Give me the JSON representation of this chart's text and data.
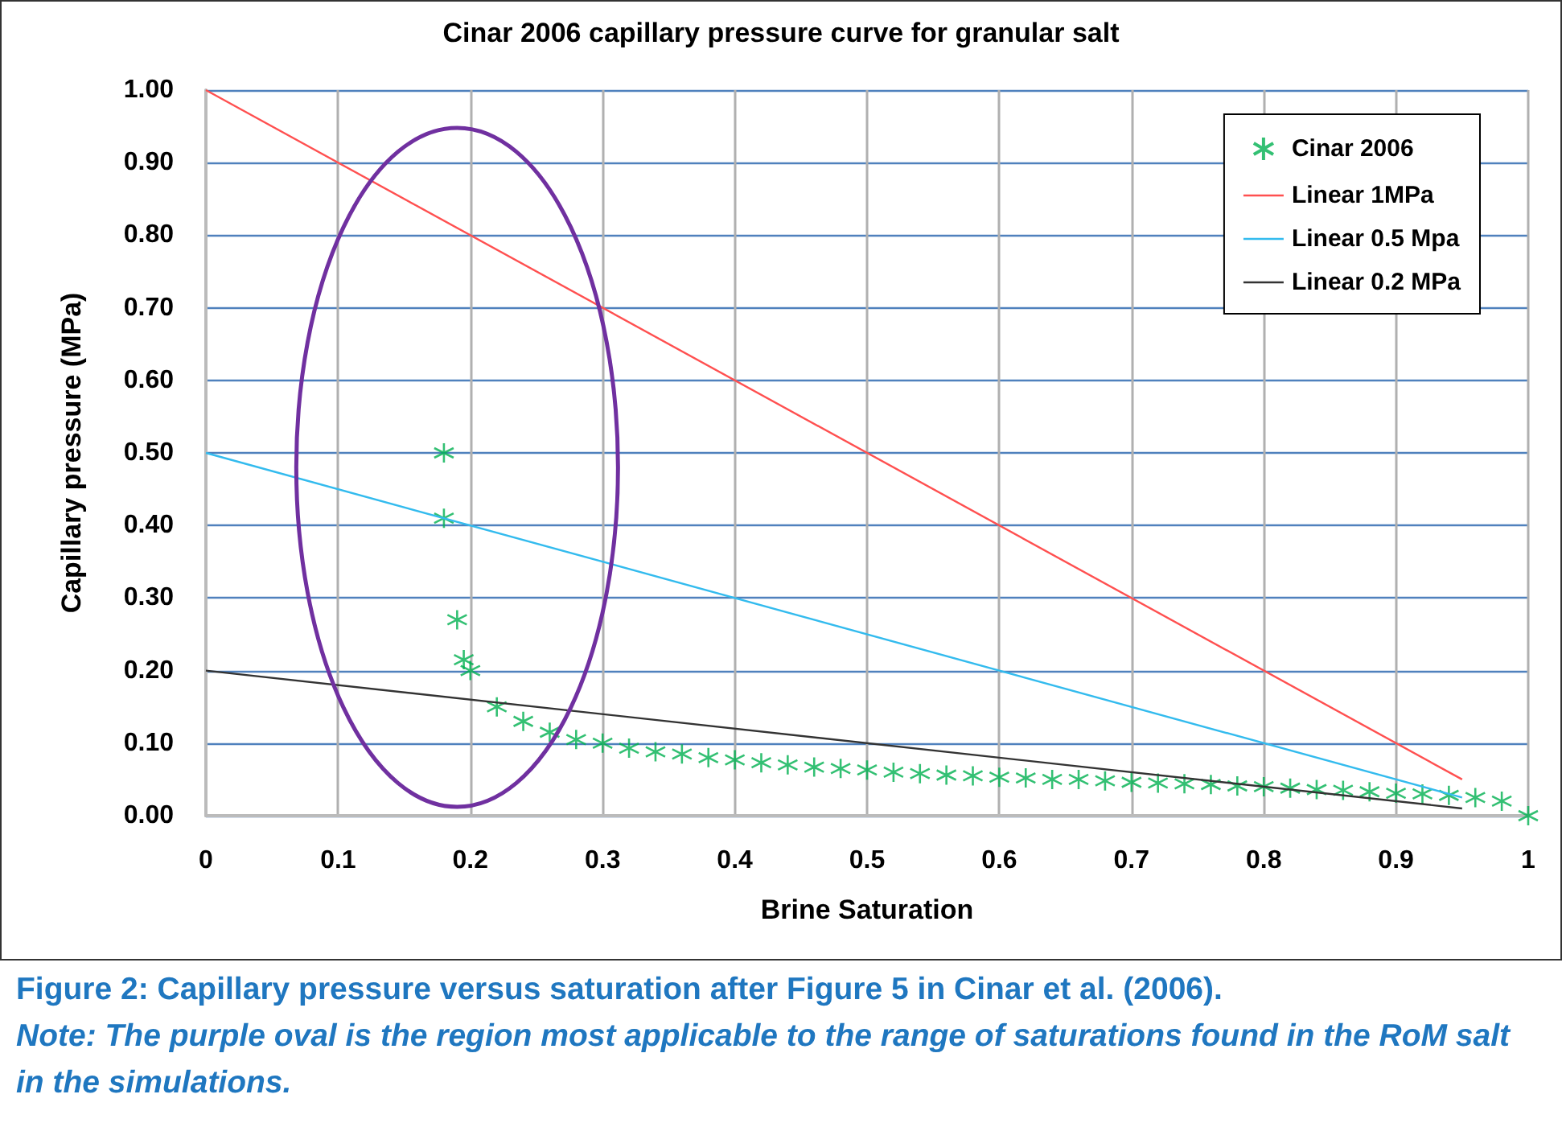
{
  "chart_data": {
    "type": "line",
    "title": "Cinar 2006 capillary pressure curve for granular salt",
    "xlabel": "Brine Saturation",
    "ylabel": "Capillary pressure (MPa)",
    "xlim": [
      0,
      1
    ],
    "xticks": [
      0,
      0.1,
      0.2,
      0.3,
      0.4,
      0.5,
      0.6,
      0.7,
      0.8,
      0.9,
      1
    ],
    "ylim": [
      0,
      1
    ],
    "yticks": [
      {
        "value": 0,
        "label": "0.00"
      },
      {
        "value": 0.1,
        "label": "0.10"
      },
      {
        "value": 0.2,
        "label": "0.20"
      },
      {
        "value": 0.3,
        "label": "0.30"
      },
      {
        "value": 0.4,
        "label": "0.40"
      },
      {
        "value": 0.5,
        "label": "0.50"
      },
      {
        "value": 0.6,
        "label": "0.60"
      },
      {
        "value": 0.7,
        "label": "0.70"
      },
      {
        "value": 0.8,
        "label": "0.80"
      },
      {
        "value": 0.9,
        "label": "0.90"
      },
      {
        "value": 1,
        "label": "1.00"
      }
    ],
    "grid": true,
    "legend": "top right",
    "series": [
      {
        "name": "Cinar 2006",
        "type": "scatter",
        "marker": "cross",
        "color": "#00b050",
        "x": [
          0.18,
          0.18,
          0.19,
          0.195,
          0.2,
          0.22,
          0.24,
          0.26,
          0.28,
          0.3,
          0.32,
          0.34,
          0.36,
          0.38,
          0.4,
          0.42,
          0.44,
          0.46,
          0.48,
          0.5,
          0.52,
          0.54,
          0.56,
          0.58,
          0.6,
          0.62,
          0.64,
          0.66,
          0.68,
          0.7,
          0.72,
          0.74,
          0.76,
          0.78,
          0.8,
          0.82,
          0.84,
          0.86,
          0.88,
          0.9,
          0.92,
          0.94,
          0.96,
          0.98,
          1.0
        ],
        "values": [
          0.5,
          0.41,
          0.27,
          0.215,
          0.2,
          0.15,
          0.13,
          0.115,
          0.105,
          0.1,
          0.093,
          0.088,
          0.085,
          0.08,
          0.077,
          0.073,
          0.07,
          0.067,
          0.065,
          0.063,
          0.06,
          0.058,
          0.056,
          0.055,
          0.053,
          0.052,
          0.05,
          0.05,
          0.048,
          0.046,
          0.045,
          0.044,
          0.043,
          0.041,
          0.04,
          0.038,
          0.036,
          0.035,
          0.033,
          0.031,
          0.03,
          0.028,
          0.025,
          0.02,
          0.0
        ]
      },
      {
        "name": "Linear 1MPa",
        "marker": "none",
        "color": "#ff5050",
        "x": [
          0,
          0.95
        ],
        "values": [
          1,
          0.05
        ]
      },
      {
        "name": "Linear 0.5 Mpa",
        "marker": "none",
        "color": "#33bbee",
        "x": [
          0,
          0.95
        ],
        "values": [
          0.5,
          0.025
        ]
      },
      {
        "name": "Linear 0.2 MPa",
        "marker": "none",
        "color": "#333333",
        "x": [
          0,
          0.95
        ],
        "values": [
          0.2,
          0.01
        ]
      }
    ],
    "annotations": [
      "Figure 2: Capillary pressure versus saturation after Figure 5 in Cinar et al. (2006).",
      "Note: The purple oval is the region most applicable to the range of saturations found in the RoM salt in the simulations."
    ]
  }
}
